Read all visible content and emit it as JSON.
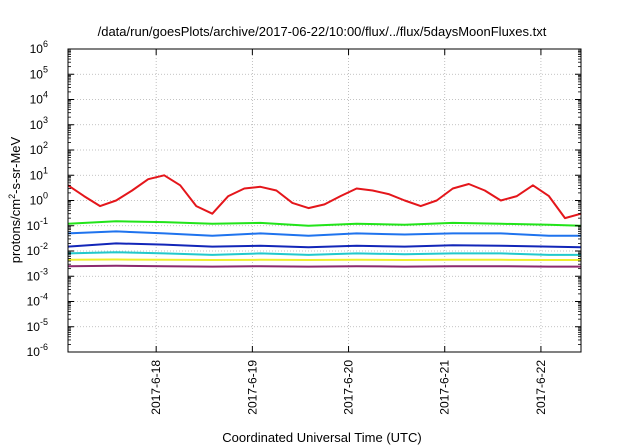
{
  "chart_data": {
    "type": "line",
    "title": "/data/run/goesPlots/archive/2017-06-22/10:00/flux/../flux/5daysMoonFluxes.txt",
    "xlabel": "Coordinated Universal Time (UTC)",
    "ylabel_parts": [
      "protons/cm",
      "2",
      "-s-sr-MeV"
    ],
    "y_scale": "log",
    "ylim": [
      1e-06,
      1000000.0
    ],
    "xlim": [
      "2017-06-17 02:00",
      "2017-06-22 10:00"
    ],
    "x_ticks": [
      "2017-6-18",
      "2017-6-19",
      "2017-6-20",
      "2017-6-21",
      "2017-6-22"
    ],
    "y_tick_exponents": [
      "-6",
      "-5",
      "-4",
      "-3",
      "-2",
      "-1",
      "0",
      "1",
      "2",
      "3",
      "4",
      "5",
      "6"
    ],
    "y_tick_base": "10",
    "grid": true,
    "series": [
      {
        "color": "#e4161b",
        "x": [
          "2017-06-17 02:00",
          "2017-06-17 06:00",
          "2017-06-17 10:00",
          "2017-06-17 14:00",
          "2017-06-17 18:00",
          "2017-06-17 22:00",
          "2017-06-18 02:00",
          "2017-06-18 06:00",
          "2017-06-18 10:00",
          "2017-06-18 14:00",
          "2017-06-18 18:00",
          "2017-06-18 22:00",
          "2017-06-19 02:00",
          "2017-06-19 06:00",
          "2017-06-19 10:00",
          "2017-06-19 14:00",
          "2017-06-19 18:00",
          "2017-06-19 22:00",
          "2017-06-20 02:00",
          "2017-06-20 06:00",
          "2017-06-20 10:00",
          "2017-06-20 14:00",
          "2017-06-20 18:00",
          "2017-06-20 22:00",
          "2017-06-21 02:00",
          "2017-06-21 06:00",
          "2017-06-21 10:00",
          "2017-06-21 14:00",
          "2017-06-21 18:00",
          "2017-06-21 22:00",
          "2017-06-22 02:00",
          "2017-06-22 06:00",
          "2017-06-22 10:00"
        ],
        "values": [
          4,
          1.5,
          0.6,
          1,
          2.5,
          7,
          10,
          4,
          0.6,
          0.3,
          1.5,
          3,
          3.5,
          2.5,
          0.8,
          0.5,
          0.7,
          1.5,
          3,
          2.5,
          1.8,
          1,
          0.6,
          1,
          3,
          4.5,
          2.5,
          1,
          1.5,
          4,
          1.5,
          0.2,
          0.3
        ]
      },
      {
        "color": "#22e41a",
        "x": [
          "2017-06-17 02:00",
          "2017-06-17 14:00",
          "2017-06-18 02:00",
          "2017-06-18 14:00",
          "2017-06-19 02:00",
          "2017-06-19 14:00",
          "2017-06-20 02:00",
          "2017-06-20 14:00",
          "2017-06-21 02:00",
          "2017-06-21 14:00",
          "2017-06-22 02:00",
          "2017-06-22 10:00"
        ],
        "values": [
          0.12,
          0.15,
          0.14,
          0.12,
          0.13,
          0.1,
          0.12,
          0.11,
          0.13,
          0.12,
          0.11,
          0.1
        ]
      },
      {
        "color": "#1f73ee",
        "x": [
          "2017-06-17 02:00",
          "2017-06-17 14:00",
          "2017-06-18 02:00",
          "2017-06-18 14:00",
          "2017-06-19 02:00",
          "2017-06-19 14:00",
          "2017-06-20 02:00",
          "2017-06-20 14:00",
          "2017-06-21 02:00",
          "2017-06-21 14:00",
          "2017-06-22 02:00",
          "2017-06-22 10:00"
        ],
        "values": [
          0.05,
          0.06,
          0.05,
          0.04,
          0.05,
          0.04,
          0.05,
          0.045,
          0.05,
          0.05,
          0.04,
          0.04
        ]
      },
      {
        "color": "#1226b8",
        "x": [
          "2017-06-17 02:00",
          "2017-06-17 14:00",
          "2017-06-18 02:00",
          "2017-06-18 14:00",
          "2017-06-19 02:00",
          "2017-06-19 14:00",
          "2017-06-20 02:00",
          "2017-06-20 14:00",
          "2017-06-21 02:00",
          "2017-06-21 14:00",
          "2017-06-22 02:00",
          "2017-06-22 10:00"
        ],
        "values": [
          0.015,
          0.02,
          0.018,
          0.015,
          0.016,
          0.014,
          0.016,
          0.015,
          0.017,
          0.016,
          0.015,
          0.014
        ]
      },
      {
        "color": "#22c9cc",
        "x": [
          "2017-06-17 02:00",
          "2017-06-17 14:00",
          "2017-06-18 02:00",
          "2017-06-18 14:00",
          "2017-06-19 02:00",
          "2017-06-19 14:00",
          "2017-06-20 02:00",
          "2017-06-20 14:00",
          "2017-06-21 02:00",
          "2017-06-21 14:00",
          "2017-06-22 02:00",
          "2017-06-22 10:00"
        ],
        "values": [
          0.008,
          0.009,
          0.008,
          0.007,
          0.008,
          0.007,
          0.008,
          0.0075,
          0.008,
          0.008,
          0.007,
          0.007
        ]
      },
      {
        "color": "#eeee2a",
        "x": [
          "2017-06-17 02:00",
          "2017-06-17 14:00",
          "2017-06-18 02:00",
          "2017-06-18 14:00",
          "2017-06-19 02:00",
          "2017-06-19 14:00",
          "2017-06-20 02:00",
          "2017-06-20 14:00",
          "2017-06-21 02:00",
          "2017-06-21 14:00",
          "2017-06-22 02:00",
          "2017-06-22 10:00"
        ],
        "values": [
          0.0045,
          0.0046,
          0.0045,
          0.0044,
          0.0045,
          0.0044,
          0.0045,
          0.0044,
          0.0045,
          0.0045,
          0.0044,
          0.0044
        ]
      },
      {
        "color": "#8c2a6e",
        "x": [
          "2017-06-17 02:00",
          "2017-06-17 14:00",
          "2017-06-18 02:00",
          "2017-06-18 14:00",
          "2017-06-19 02:00",
          "2017-06-19 14:00",
          "2017-06-20 02:00",
          "2017-06-20 14:00",
          "2017-06-21 02:00",
          "2017-06-21 14:00",
          "2017-06-22 02:00",
          "2017-06-22 10:00"
        ],
        "values": [
          0.0025,
          0.0026,
          0.0025,
          0.0024,
          0.0025,
          0.0024,
          0.0025,
          0.0024,
          0.0025,
          0.0025,
          0.0024,
          0.0024
        ]
      }
    ]
  }
}
